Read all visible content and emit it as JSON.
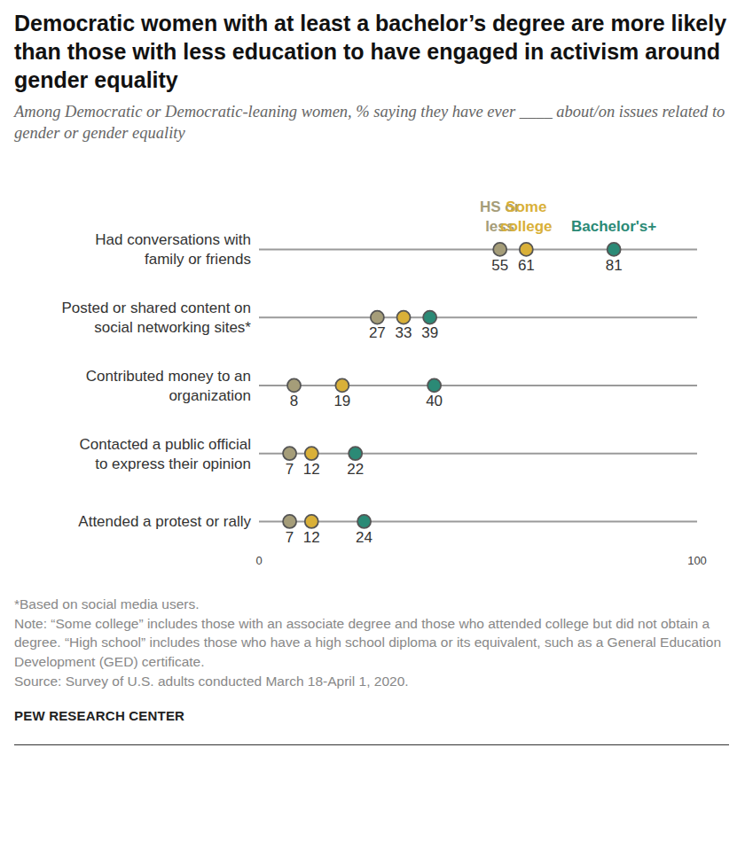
{
  "chart_data": {
    "type": "dot",
    "orientation": "horizontal",
    "title": "Democratic women with at least a bachelor’s degree are more likely than those with less education to have engaged in activism around gender equality",
    "subtitle": "Among Democratic or Democratic-leaning women, % saying they have ever ____ about/on issues related to gender or gender equality",
    "categories": [
      "Had conversations with family or friends",
      "Posted or shared content on social networking sites*",
      "Contributed money to an organization",
      "Contacted a public official to express their opinion",
      "Attended a protest or rally"
    ],
    "series": [
      {
        "name": "HS or less",
        "color": "#a59d79",
        "values": [
          55,
          27,
          8,
          7,
          7
        ]
      },
      {
        "name": "Some college",
        "color": "#d9b038",
        "values": [
          61,
          33,
          19,
          12,
          12
        ]
      },
      {
        "name": "Bachelor's+",
        "color": "#2b8a76",
        "values": [
          81,
          39,
          40,
          22,
          24
        ]
      }
    ],
    "xlim": [
      0,
      100
    ],
    "xticks": [
      0,
      100
    ],
    "data_labels": true,
    "legend": "top",
    "grid": false,
    "notes": [
      "*Based on social media users.",
      "Note: “Some college” includes those with an associate degree and those who attended college but did not obtain a degree. “High school” includes those who have a high school diploma or its equivalent, such as a General Education Development (GED) certificate.",
      "Source: Survey of U.S. adults conducted March 18-April 1, 2020."
    ],
    "credit": "PEW RESEARCH CENTER"
  }
}
